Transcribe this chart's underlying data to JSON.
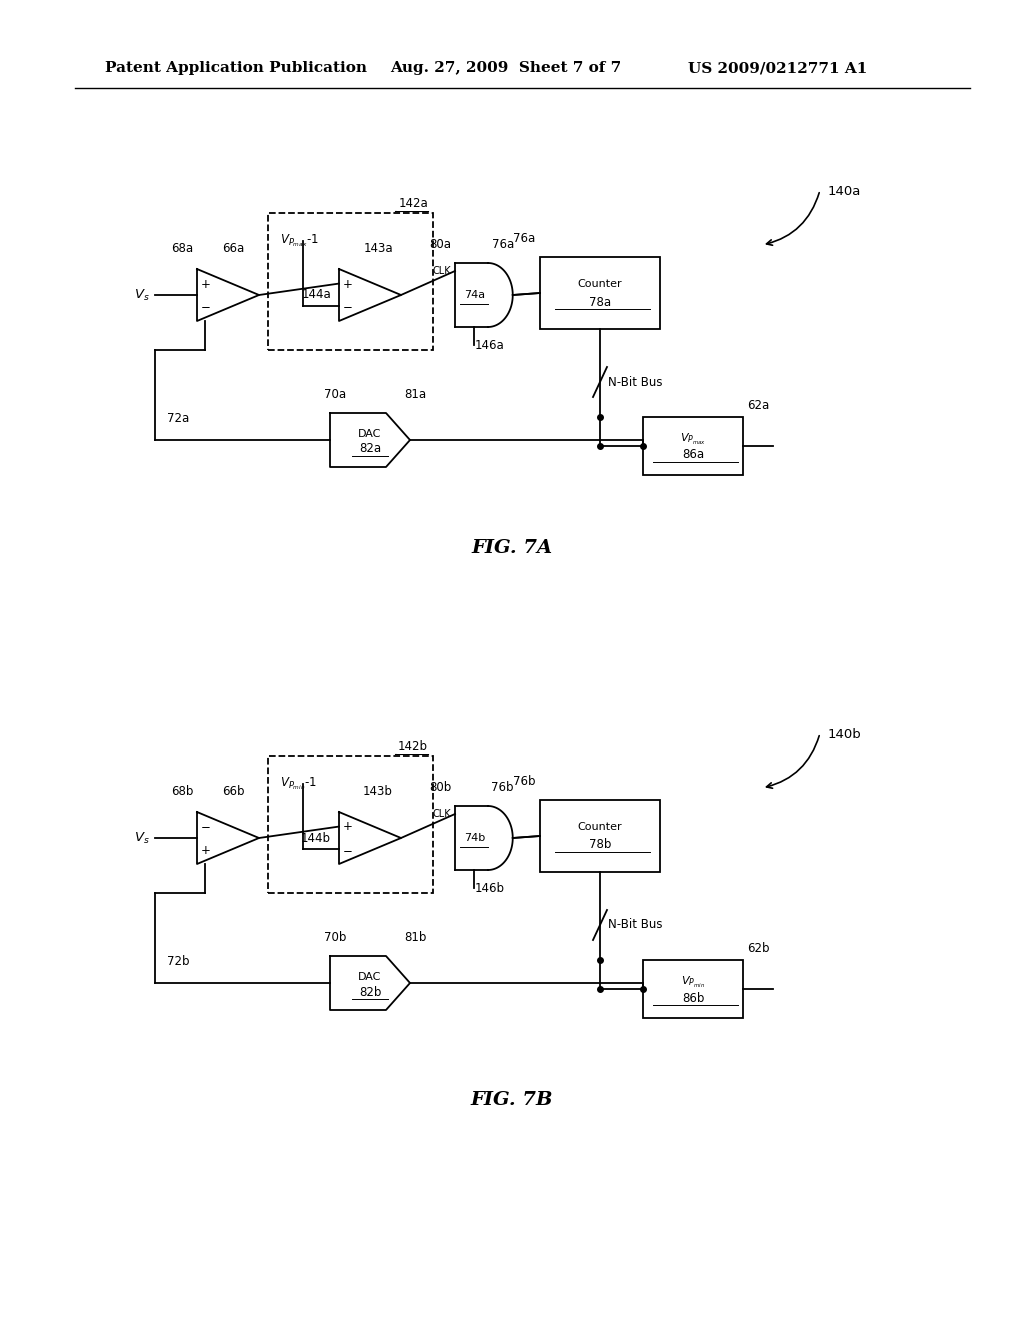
{
  "bg_color": "#ffffff",
  "header_left": "Patent Application Publication",
  "header_mid": "Aug. 27, 2009  Sheet 7 of 7",
  "header_right": "US 2009/0212771 A1",
  "fig7a_label": "FIG. 7A",
  "fig7b_label": "FIG. 7B"
}
